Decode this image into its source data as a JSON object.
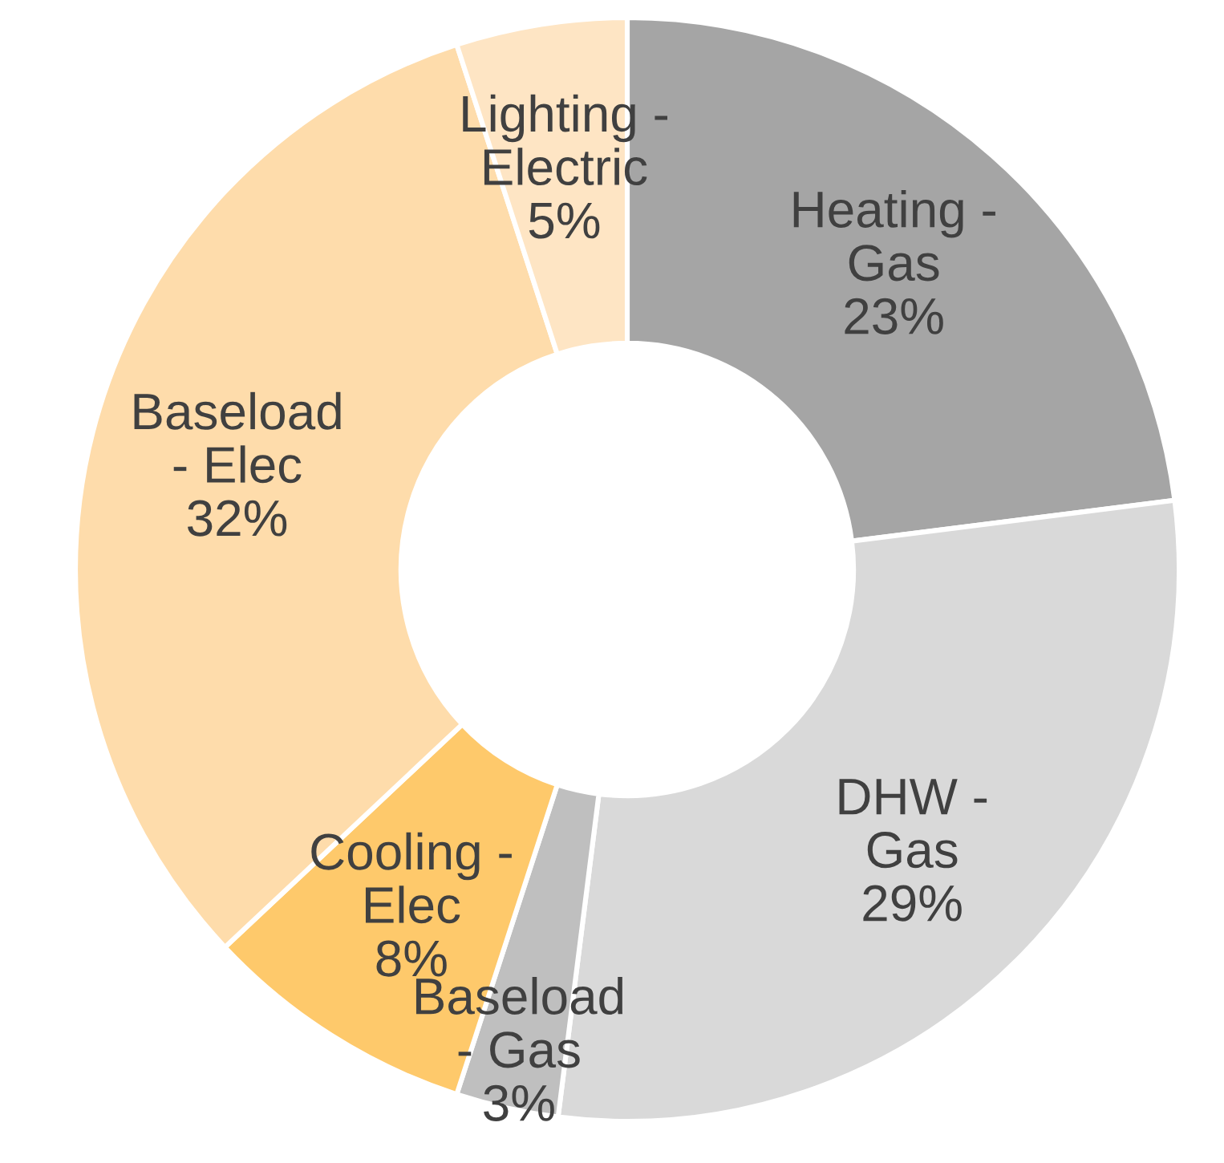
{
  "chart_data": {
    "type": "donut",
    "categories": [
      "Heating - Gas",
      "DHW - Gas",
      "Baseload - Gas",
      "Cooling - Elec",
      "Baseload - Elec",
      "Lighting - Electric"
    ],
    "values": [
      23,
      29,
      3,
      8,
      32,
      5
    ],
    "value_labels": [
      "23%",
      "29%",
      "3%",
      "8%",
      "32%",
      "5%"
    ],
    "colors": [
      "#a5a5a5",
      "#d9d9d9",
      "#bfbfbf",
      "#fec96b",
      "#fedcab",
      "#fee5c4"
    ]
  }
}
